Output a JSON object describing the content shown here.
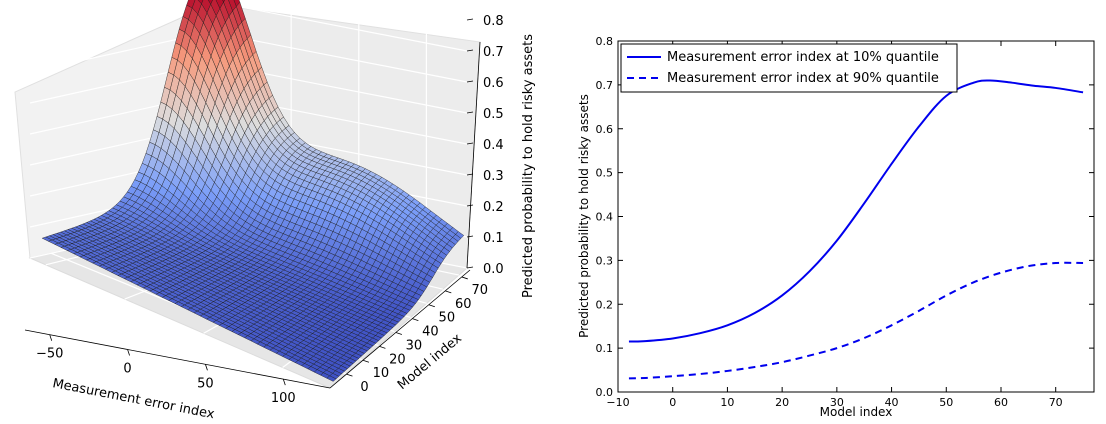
{
  "chart_data": [
    {
      "type": "surface3d",
      "title": "",
      "xlabel": "Measurement error index",
      "ylabel": "Model index",
      "zlabel": "Predicted probability to hold risky assets",
      "x_ticks": [
        "−50",
        "0",
        "50",
        "100"
      ],
      "y_ticks": [
        "0",
        "10",
        "20",
        "30",
        "40",
        "50",
        "60",
        "70"
      ],
      "z_ticks": [
        "0.0",
        "0.1",
        "0.2",
        "0.3",
        "0.4",
        "0.5",
        "0.6",
        "0.7",
        "0.8"
      ],
      "xlim": [
        -60,
        130
      ],
      "ylim": [
        -10,
        75
      ],
      "zlim": [
        0,
        0.8
      ],
      "colormap": "coolwarm",
      "peak": {
        "x": -55,
        "y": 65,
        "z": 0.8
      }
    },
    {
      "type": "line",
      "title": "",
      "xlabel": "Model index",
      "ylabel": "Predicted probability to hold risky assets",
      "xlim": [
        -10,
        77
      ],
      "ylim": [
        0,
        0.8
      ],
      "x_ticks": [
        "−10",
        "0",
        "10",
        "20",
        "30",
        "40",
        "50",
        "60",
        "70"
      ],
      "y_ticks": [
        "0.0",
        "0.1",
        "0.2",
        "0.3",
        "0.4",
        "0.5",
        "0.6",
        "0.7",
        "0.8"
      ],
      "legend_position": "top-left",
      "series": [
        {
          "name": "Measurement error index at 10% quantile",
          "style": "solid",
          "color": "#0000ee",
          "x": [
            -8,
            -5,
            0,
            5,
            10,
            15,
            20,
            25,
            30,
            35,
            40,
            45,
            50,
            55,
            58,
            62,
            66,
            70,
            75
          ],
          "y": [
            0.115,
            0.116,
            0.122,
            0.134,
            0.152,
            0.18,
            0.22,
            0.275,
            0.345,
            0.43,
            0.52,
            0.605,
            0.675,
            0.705,
            0.71,
            0.705,
            0.698,
            0.693,
            0.683
          ]
        },
        {
          "name": "Measurement error index at 90% quantile",
          "style": "dashed",
          "color": "#0000ee",
          "x": [
            -8,
            -5,
            0,
            5,
            10,
            15,
            20,
            25,
            30,
            35,
            40,
            45,
            50,
            55,
            60,
            65,
            70,
            75
          ],
          "y": [
            0.031,
            0.032,
            0.036,
            0.041,
            0.048,
            0.057,
            0.068,
            0.083,
            0.1,
            0.123,
            0.152,
            0.185,
            0.22,
            0.25,
            0.272,
            0.287,
            0.294,
            0.294
          ]
        }
      ]
    }
  ]
}
